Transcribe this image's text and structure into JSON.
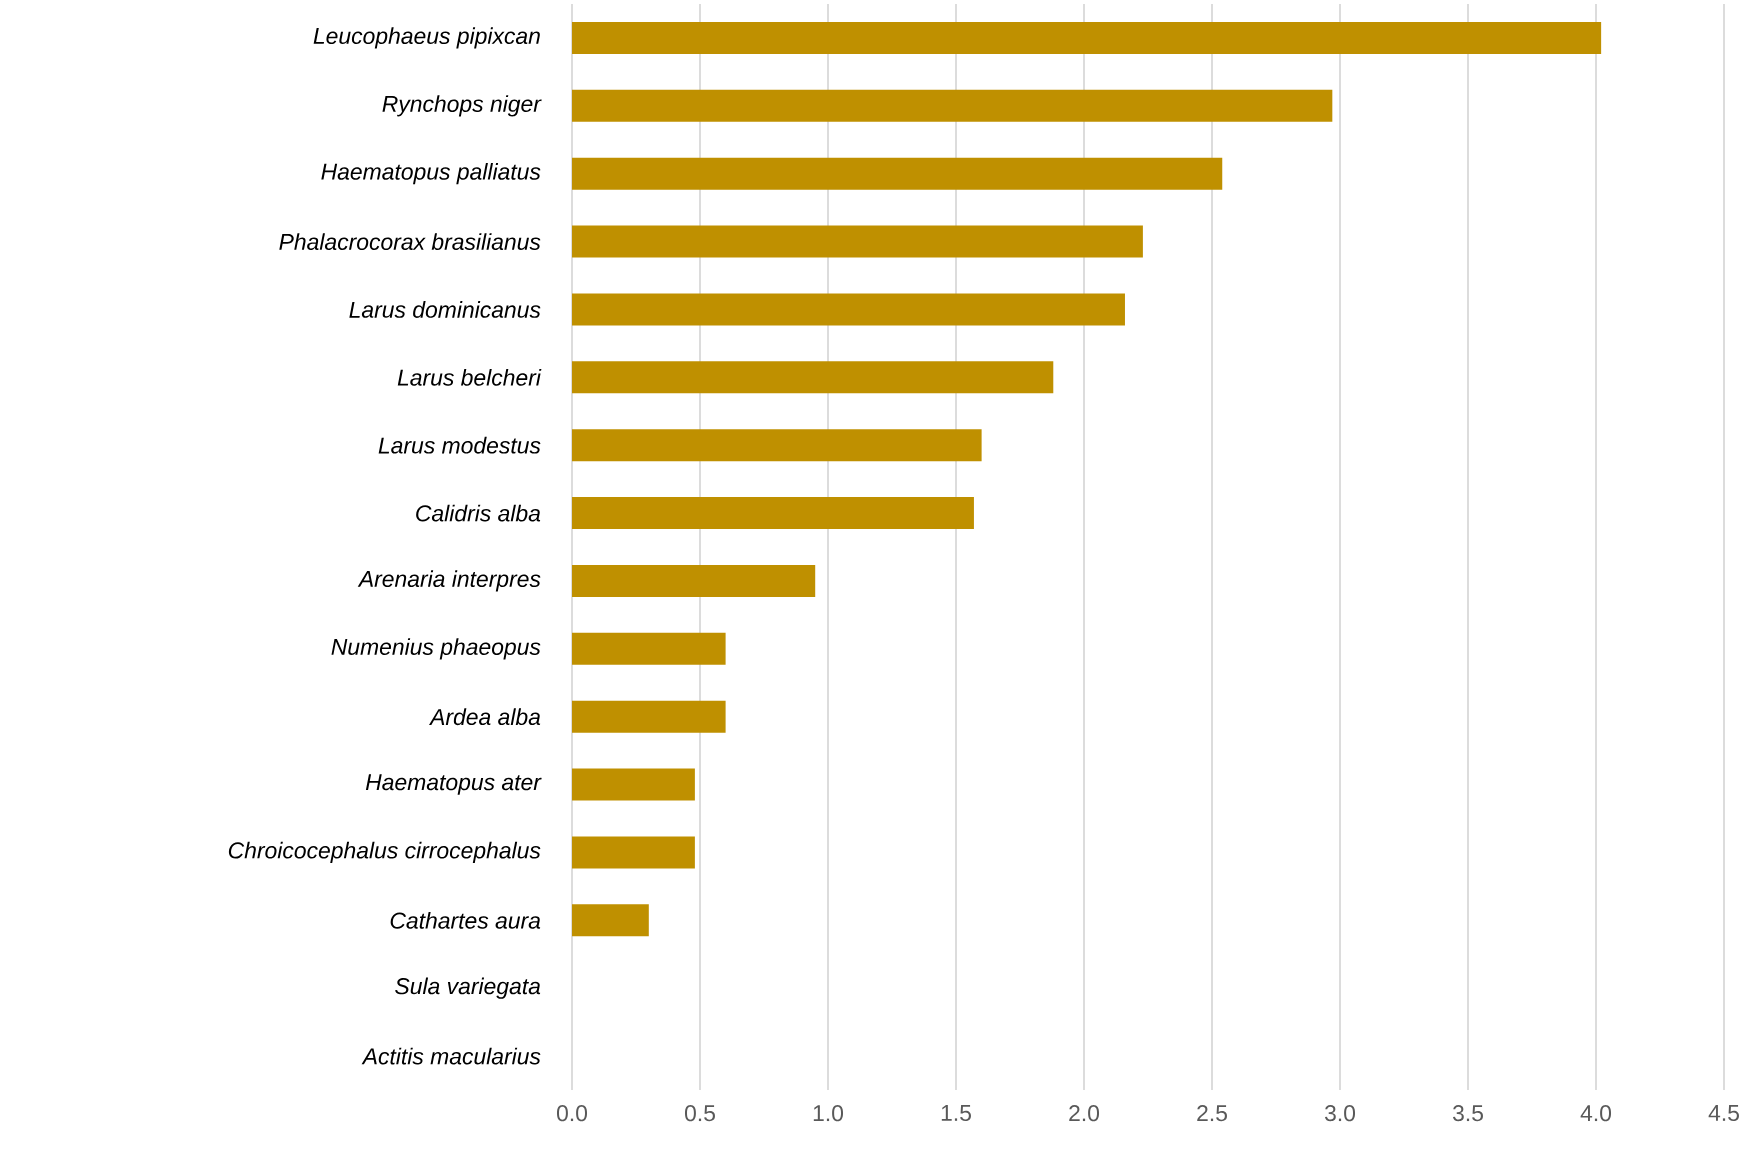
{
  "chart_data": {
    "type": "bar",
    "orientation": "horizontal",
    "categories": [
      "Leucophaeus pipixcan",
      "Rynchops niger",
      "Haematopus palliatus",
      "Phalacrocorax brasilianus",
      "Larus dominicanus",
      "Larus belcheri",
      "Larus modestus",
      "Calidris alba",
      "Arenaria interpres",
      "Numenius phaeopus",
      "Ardea alba",
      "Haematopus ater",
      "Chroicocephalus cirrocephalus",
      "Cathartes aura",
      "Sula variegata",
      "Actitis macularius"
    ],
    "values": [
      4.02,
      2.97,
      2.54,
      2.23,
      2.16,
      1.88,
      1.6,
      1.57,
      0.95,
      0.6,
      0.6,
      0.48,
      0.48,
      0.3,
      0,
      0
    ],
    "color": "#bf9000",
    "xlim": [
      0,
      4.5
    ],
    "xticks": [
      {
        "value": 0,
        "label": "0.0"
      },
      0.5,
      {
        "value": 1,
        "label": "1.0"
      },
      1.5,
      {
        "value": 2,
        "label": "2.0"
      },
      2.5,
      {
        "value": 3,
        "label": "3.0"
      },
      3.5,
      {
        "value": 4,
        "label": "4.0"
      },
      4.5
    ],
    "grid": "x"
  }
}
